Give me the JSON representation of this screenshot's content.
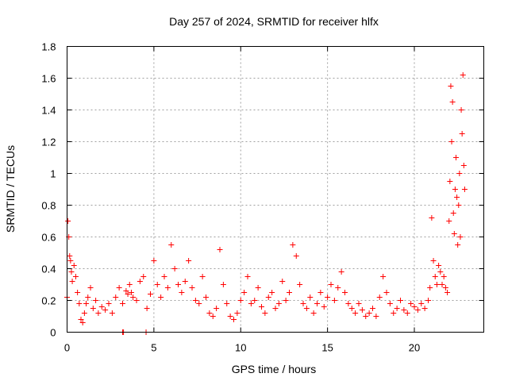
{
  "chart_data": {
    "type": "scatter",
    "title": "Day 257 of 2024, SRMTID for receiver hlfx",
    "xlabel": "GPS time / hours",
    "ylabel": "SRMTID / TECUs",
    "xlim": [
      0,
      24
    ],
    "ylim": [
      0,
      1.8
    ],
    "xticks": [
      0,
      5,
      10,
      15,
      20
    ],
    "xtick_labels": [
      "0",
      "5",
      "10",
      "15",
      "20"
    ],
    "yticks": [
      0,
      0.2,
      0.4,
      0.6,
      0.8,
      1.0,
      1.2,
      1.4,
      1.6,
      1.8
    ],
    "ytick_labels": [
      "0",
      "0.2",
      "0.4",
      "0.6",
      "0.8",
      "1",
      "1.2",
      "1.4",
      "1.6",
      "1.8"
    ],
    "grid": true,
    "marker": "plus",
    "colors": {
      "series": "#ff0000",
      "grid": "#a0a0a0",
      "axis": "#000000"
    },
    "series": [
      {
        "name": "SRMTID",
        "x": [
          0.0,
          0.05,
          0.1,
          0.15,
          0.2,
          0.25,
          0.3,
          0.4,
          0.5,
          0.6,
          0.7,
          0.8,
          0.9,
          1.0,
          1.1,
          1.2,
          1.35,
          1.5,
          1.65,
          1.8,
          2.0,
          2.2,
          2.4,
          2.6,
          2.8,
          3.0,
          3.2,
          3.4,
          3.5,
          3.6,
          3.7,
          3.8,
          4.0,
          4.2,
          4.4,
          4.6,
          4.8,
          5.0,
          5.2,
          5.4,
          5.6,
          5.8,
          6.0,
          6.2,
          6.4,
          6.6,
          6.8,
          7.0,
          7.2,
          7.4,
          7.6,
          7.8,
          8.0,
          8.2,
          8.4,
          8.6,
          8.8,
          9.0,
          9.2,
          9.4,
          9.6,
          9.8,
          10.0,
          10.2,
          10.4,
          10.6,
          10.8,
          11.0,
          11.2,
          11.4,
          11.6,
          11.8,
          12.0,
          12.2,
          12.4,
          12.6,
          12.8,
          13.0,
          13.2,
          13.4,
          13.6,
          13.8,
          14.0,
          14.2,
          14.4,
          14.6,
          14.8,
          15.0,
          15.2,
          15.4,
          15.6,
          15.8,
          16.0,
          16.2,
          16.4,
          16.6,
          16.8,
          17.0,
          17.2,
          17.4,
          17.6,
          17.8,
          18.0,
          18.2,
          18.4,
          18.6,
          18.8,
          19.0,
          19.2,
          19.4,
          19.6,
          19.8,
          20.0,
          20.2,
          20.4,
          20.6,
          20.8,
          20.9,
          21.0,
          21.1,
          21.2,
          21.3,
          21.4,
          21.5,
          21.6,
          21.7,
          21.8,
          21.9,
          22.0,
          22.05,
          22.1,
          22.15,
          22.2,
          22.25,
          22.3,
          22.35,
          22.4,
          22.45,
          22.5,
          22.55,
          22.6,
          22.65,
          22.7,
          22.75,
          22.8,
          22.85,
          22.9
        ],
        "y": [
          0.22,
          0.7,
          0.6,
          0.48,
          0.45,
          0.38,
          0.32,
          0.42,
          0.35,
          0.25,
          0.18,
          0.08,
          0.06,
          0.12,
          0.18,
          0.22,
          0.28,
          0.15,
          0.2,
          0.12,
          0.16,
          0.14,
          0.18,
          0.12,
          0.22,
          0.28,
          0.18,
          0.26,
          0.24,
          0.3,
          0.25,
          0.22,
          0.2,
          0.32,
          0.35,
          0.15,
          0.24,
          0.45,
          0.3,
          0.22,
          0.35,
          0.28,
          0.55,
          0.4,
          0.3,
          0.25,
          0.32,
          0.45,
          0.28,
          0.2,
          0.18,
          0.35,
          0.22,
          0.12,
          0.1,
          0.15,
          0.52,
          0.3,
          0.18,
          0.1,
          0.08,
          0.12,
          0.2,
          0.25,
          0.35,
          0.18,
          0.2,
          0.28,
          0.16,
          0.12,
          0.22,
          0.25,
          0.15,
          0.18,
          0.32,
          0.2,
          0.25,
          0.55,
          0.48,
          0.3,
          0.18,
          0.15,
          0.22,
          0.12,
          0.18,
          0.25,
          0.16,
          0.22,
          0.3,
          0.2,
          0.28,
          0.38,
          0.25,
          0.18,
          0.15,
          0.12,
          0.18,
          0.14,
          0.1,
          0.12,
          0.15,
          0.1,
          0.22,
          0.35,
          0.25,
          0.18,
          0.12,
          0.15,
          0.2,
          0.14,
          0.12,
          0.18,
          0.16,
          0.14,
          0.18,
          0.15,
          0.2,
          0.28,
          0.72,
          0.45,
          0.35,
          0.3,
          0.42,
          0.38,
          0.3,
          0.35,
          0.28,
          0.25,
          0.7,
          0.95,
          1.55,
          1.2,
          1.45,
          0.75,
          0.62,
          0.9,
          1.1,
          0.85,
          0.55,
          0.8,
          1.0,
          0.6,
          1.4,
          1.25,
          1.62,
          1.05,
          0.9
        ],
        "outliers_at_zero": [
          3.2,
          3.25,
          4.55
        ]
      }
    ]
  }
}
